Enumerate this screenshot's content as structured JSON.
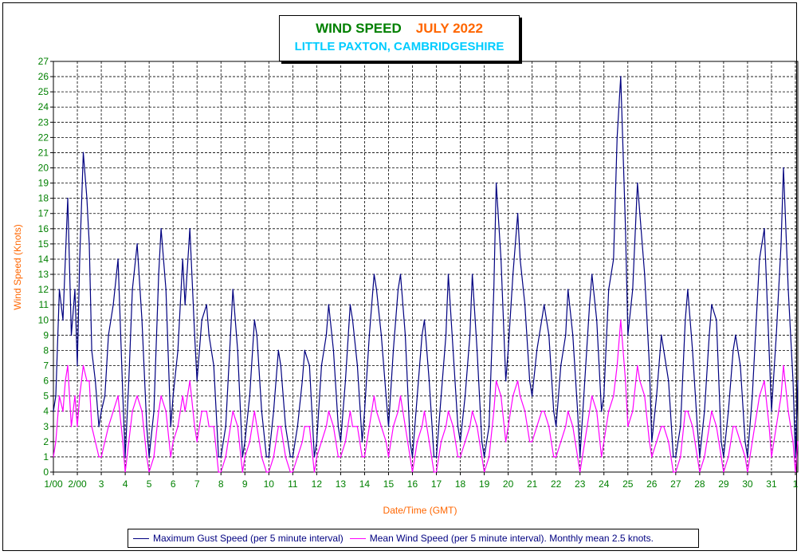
{
  "header": {
    "title": "WIND SPEED",
    "month": "JULY 2022",
    "subtitle": "LITTLE PAXTON, CAMBRIDGESHIRE"
  },
  "legend": {
    "gust_label": "Maximum Gust Speed (per 5 minute interval)",
    "mean_label": "Mean Wind Speed (per 5 minute interval). Monthly mean 2.5 knots."
  },
  "chart_data": {
    "type": "line",
    "title": "WIND SPEED JULY 2022",
    "subtitle": "LITTLE PAXTON, CAMBRIDGESHIRE",
    "xlabel": "Date/Time (GMT)",
    "ylabel": "Wind Speed (Knots)",
    "ylim": [
      0,
      27
    ],
    "xlim_days": [
      1,
      32.1
    ],
    "grid": true,
    "legend_position": "bottom",
    "y_ticks": [
      "0",
      "1",
      "2",
      "3",
      "4",
      "5",
      "6",
      "7",
      "8",
      "9",
      "10",
      "11",
      "12",
      "13",
      "14",
      "15",
      "16",
      "17",
      "18",
      "19",
      "20",
      "21",
      "22",
      "23",
      "24",
      "25",
      "26",
      "27"
    ],
    "x_ticks": [
      "1/00",
      "2/00",
      "3",
      "4",
      "5",
      "6",
      "7",
      "8",
      "9",
      "10",
      "11",
      "12",
      "13",
      "14",
      "15",
      "16",
      "17",
      "18",
      "19",
      "20",
      "21",
      "22",
      "23",
      "24",
      "25",
      "26",
      "27",
      "28",
      "29",
      "30",
      "31",
      "1"
    ],
    "colors": {
      "gust": "#000080",
      "mean": "#ff00ff",
      "grid": "#000000",
      "axis_text": "#008000",
      "axis_title": "#ff6600"
    },
    "series": [
      {
        "name": "Maximum Gust Speed (per 5 minute interval)",
        "key": "gust",
        "x": [
          1.0,
          1.1,
          1.25,
          1.4,
          1.5,
          1.6,
          1.75,
          1.9,
          2.0,
          2.1,
          2.25,
          2.4,
          2.5,
          2.6,
          2.75,
          2.9,
          3.0,
          3.15,
          3.3,
          3.5,
          3.7,
          3.9,
          4.0,
          4.15,
          4.3,
          4.5,
          4.7,
          4.9,
          5.0,
          5.2,
          5.4,
          5.5,
          5.7,
          5.9,
          6.0,
          6.2,
          6.4,
          6.5,
          6.7,
          6.9,
          7.0,
          7.2,
          7.4,
          7.5,
          7.7,
          7.9,
          8.0,
          8.2,
          8.4,
          8.5,
          8.7,
          8.9,
          9.0,
          9.2,
          9.4,
          9.5,
          9.7,
          9.9,
          10.0,
          10.2,
          10.4,
          10.5,
          10.7,
          10.9,
          11.0,
          11.2,
          11.4,
          11.5,
          11.7,
          11.9,
          12.0,
          12.2,
          12.4,
          12.5,
          12.7,
          12.9,
          13.0,
          13.2,
          13.4,
          13.5,
          13.7,
          13.9,
          14.0,
          14.2,
          14.4,
          14.5,
          14.7,
          14.9,
          15.0,
          15.2,
          15.4,
          15.5,
          15.7,
          15.9,
          16.0,
          16.2,
          16.4,
          16.5,
          16.7,
          16.9,
          17.0,
          17.2,
          17.4,
          17.5,
          17.7,
          17.9,
          18.0,
          18.2,
          18.4,
          18.5,
          18.7,
          18.9,
          19.0,
          19.2,
          19.4,
          19.5,
          19.7,
          19.9,
          20.0,
          20.2,
          20.4,
          20.5,
          20.7,
          20.9,
          21.0,
          21.2,
          21.4,
          21.5,
          21.7,
          21.9,
          22.0,
          22.2,
          22.4,
          22.5,
          22.7,
          22.9,
          23.0,
          23.2,
          23.4,
          23.5,
          23.7,
          23.9,
          24.0,
          24.2,
          24.4,
          24.55,
          24.7,
          24.9,
          25.0,
          25.2,
          25.4,
          25.5,
          25.7,
          25.9,
          26.0,
          26.2,
          26.4,
          26.5,
          26.7,
          26.9,
          27.0,
          27.2,
          27.4,
          27.5,
          27.7,
          27.9,
          28.0,
          28.2,
          28.4,
          28.5,
          28.7,
          28.9,
          29.0,
          29.2,
          29.4,
          29.5,
          29.7,
          29.9,
          30.0,
          30.2,
          30.4,
          30.5,
          30.7,
          30.9,
          31.0,
          31.2,
          31.4,
          31.5,
          31.7,
          31.9,
          32.0,
          32.1
        ],
        "values": [
          4,
          5,
          12,
          10,
          14,
          18,
          9,
          12,
          7,
          14,
          21,
          18,
          15,
          8,
          6,
          3,
          4,
          5,
          9,
          11,
          14,
          5,
          1,
          6,
          12,
          15,
          10,
          3,
          1,
          4,
          13,
          16,
          12,
          3,
          5,
          8,
          14,
          11,
          16,
          9,
          6,
          10,
          11,
          9,
          7,
          1,
          1,
          3,
          9,
          12,
          8,
          1,
          2,
          5,
          10,
          9,
          4,
          1,
          1,
          4,
          8,
          7,
          3,
          1,
          1,
          3,
          6,
          8,
          7,
          1,
          2,
          7,
          9,
          11,
          8,
          3,
          2,
          6,
          11,
          10,
          7,
          2,
          4,
          9,
          13,
          12,
          9,
          5,
          3,
          8,
          12,
          13,
          9,
          2,
          1,
          5,
          9,
          10,
          6,
          1,
          1,
          5,
          9,
          13,
          8,
          3,
          2,
          5,
          9,
          13,
          8,
          2,
          1,
          3,
          12,
          19,
          14,
          6,
          8,
          13,
          17,
          14,
          11,
          6,
          5,
          8,
          10,
          11,
          9,
          4,
          3,
          7,
          9,
          12,
          9,
          4,
          1,
          6,
          11,
          13,
          10,
          4,
          5,
          12,
          14,
          22,
          26,
          16,
          9,
          12,
          19,
          17,
          13,
          7,
          2,
          5,
          9,
          8,
          6,
          1,
          1,
          3,
          10,
          12,
          8,
          3,
          1,
          4,
          9,
          11,
          10,
          2,
          1,
          4,
          8,
          9,
          7,
          2,
          1,
          5,
          11,
          14,
          16,
          8,
          4,
          9,
          15,
          20,
          12,
          6,
          1,
          6
        ]
      },
      {
        "name": "Mean Wind Speed (per 5 minute interval). Monthly mean 2.5 knots.",
        "key": "mean",
        "x": [
          1.0,
          1.1,
          1.25,
          1.4,
          1.5,
          1.6,
          1.75,
          1.9,
          2.0,
          2.1,
          2.25,
          2.4,
          2.5,
          2.6,
          2.75,
          2.9,
          3.0,
          3.15,
          3.3,
          3.5,
          3.7,
          3.9,
          4.0,
          4.15,
          4.3,
          4.5,
          4.7,
          4.9,
          5.0,
          5.2,
          5.4,
          5.5,
          5.7,
          5.9,
          6.0,
          6.2,
          6.4,
          6.5,
          6.7,
          6.9,
          7.0,
          7.2,
          7.4,
          7.5,
          7.7,
          7.9,
          8.0,
          8.2,
          8.4,
          8.5,
          8.7,
          8.9,
          9.0,
          9.2,
          9.4,
          9.5,
          9.7,
          9.9,
          10.0,
          10.2,
          10.4,
          10.5,
          10.7,
          10.9,
          11.0,
          11.2,
          11.4,
          11.5,
          11.7,
          11.9,
          12.0,
          12.2,
          12.4,
          12.5,
          12.7,
          12.9,
          13.0,
          13.2,
          13.4,
          13.5,
          13.7,
          13.9,
          14.0,
          14.2,
          14.4,
          14.5,
          14.7,
          14.9,
          15.0,
          15.2,
          15.4,
          15.5,
          15.7,
          15.9,
          16.0,
          16.2,
          16.4,
          16.5,
          16.7,
          16.9,
          17.0,
          17.2,
          17.4,
          17.5,
          17.7,
          17.9,
          18.0,
          18.2,
          18.4,
          18.5,
          18.7,
          18.9,
          19.0,
          19.2,
          19.4,
          19.5,
          19.7,
          19.9,
          20.0,
          20.2,
          20.4,
          20.5,
          20.7,
          20.9,
          21.0,
          21.2,
          21.4,
          21.5,
          21.7,
          21.9,
          22.0,
          22.2,
          22.4,
          22.5,
          22.7,
          22.9,
          23.0,
          23.2,
          23.4,
          23.5,
          23.7,
          23.9,
          24.0,
          24.2,
          24.4,
          24.55,
          24.7,
          24.9,
          25.0,
          25.2,
          25.4,
          25.5,
          25.7,
          25.9,
          26.0,
          26.2,
          26.4,
          26.5,
          26.7,
          26.9,
          27.0,
          27.2,
          27.4,
          27.5,
          27.7,
          27.9,
          28.0,
          28.2,
          28.4,
          28.5,
          28.7,
          28.9,
          29.0,
          29.2,
          29.4,
          29.5,
          29.7,
          29.9,
          30.0,
          30.2,
          30.4,
          30.5,
          30.7,
          30.9,
          31.0,
          31.2,
          31.4,
          31.5,
          31.7,
          31.9,
          32.0,
          32.1
        ],
        "values": [
          1,
          2,
          5,
          4,
          6,
          7,
          3,
          5,
          3,
          5,
          7,
          6,
          6,
          3,
          2,
          1,
          1,
          2,
          3,
          4,
          5,
          2,
          0,
          2,
          4,
          5,
          4,
          1,
          0,
          1,
          4,
          5,
          4,
          1,
          2,
          3,
          5,
          4,
          6,
          3,
          2,
          4,
          4,
          3,
          3,
          0,
          0,
          1,
          3,
          4,
          3,
          0,
          1,
          2,
          4,
          3,
          1,
          0,
          0,
          1,
          3,
          3,
          1,
          0,
          0,
          1,
          2,
          3,
          3,
          0,
          1,
          2,
          3,
          4,
          3,
          1,
          1,
          2,
          4,
          3,
          3,
          1,
          1,
          3,
          5,
          4,
          3,
          2,
          1,
          3,
          4,
          5,
          3,
          1,
          0,
          2,
          3,
          4,
          2,
          0,
          0,
          2,
          3,
          4,
          3,
          1,
          1,
          2,
          3,
          4,
          3,
          1,
          0,
          1,
          4,
          6,
          5,
          2,
          3,
          5,
          6,
          5,
          4,
          2,
          2,
          3,
          4,
          4,
          3,
          1,
          1,
          2,
          3,
          4,
          3,
          1,
          0,
          2,
          4,
          5,
          4,
          1,
          2,
          4,
          5,
          7,
          10,
          6,
          3,
          4,
          7,
          6,
          5,
          2,
          1,
          2,
          3,
          3,
          2,
          0,
          0,
          1,
          4,
          4,
          3,
          1,
          0,
          1,
          3,
          4,
          3,
          1,
          0,
          1,
          3,
          3,
          2,
          1,
          0,
          2,
          4,
          5,
          6,
          3,
          1,
          3,
          5,
          7,
          4,
          2,
          0,
          2
        ]
      }
    ]
  }
}
